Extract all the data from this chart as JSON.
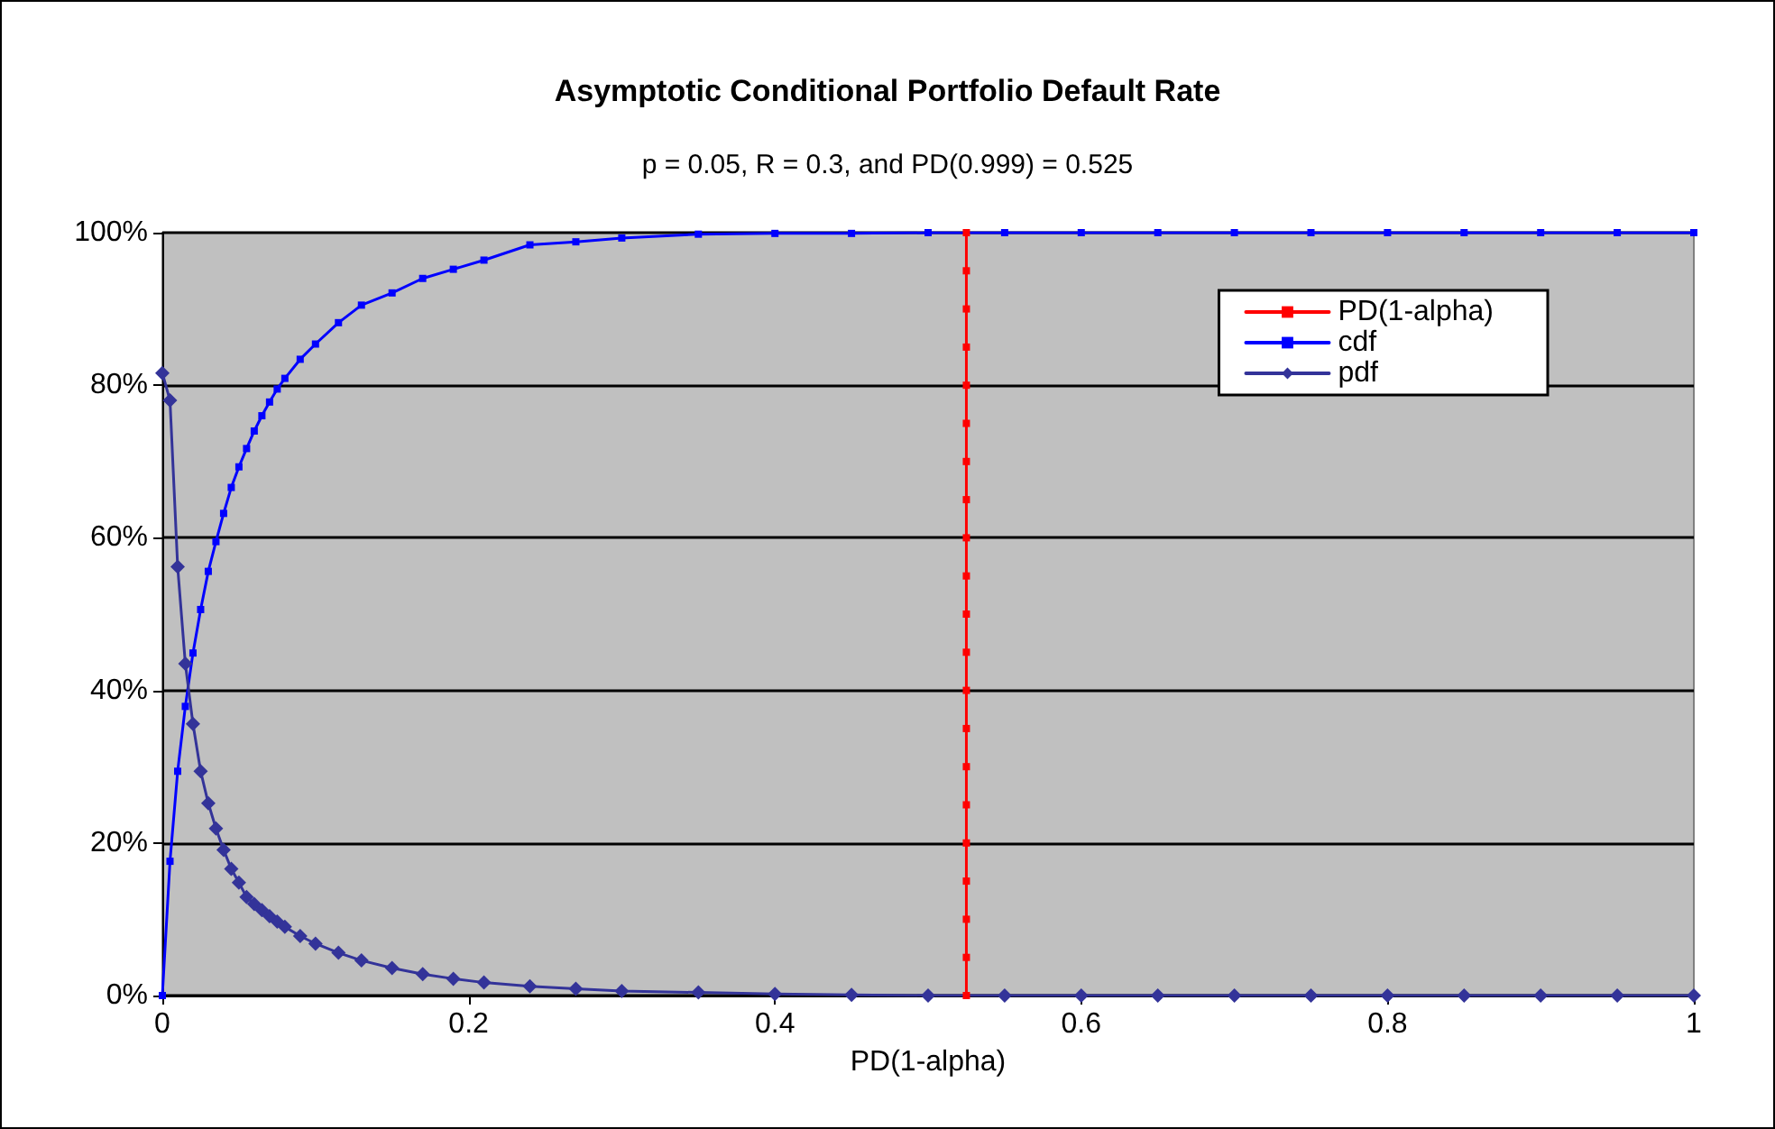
{
  "chart_data": {
    "type": "line",
    "title": "Asymptotic Conditional Portfolio Default Rate",
    "subtitle": "p = 0.05, R = 0.3, and PD(0.999) = 0.525",
    "xlabel": "PD(1-alpha)",
    "xlim": [
      0,
      1
    ],
    "xticks": [
      0,
      0.2,
      0.4,
      0.6,
      0.8,
      1
    ],
    "ylim": [
      0,
      100
    ],
    "yticks": [
      {
        "value": 0,
        "label": "0%"
      },
      {
        "value": 20,
        "label": "20%"
      },
      {
        "value": 40,
        "label": "40%"
      },
      {
        "value": 60,
        "label": "60%"
      },
      {
        "value": 80,
        "label": "80%"
      },
      {
        "value": 100,
        "label": "100%"
      }
    ],
    "grid": "y",
    "legend": "top right",
    "line_style": "solid",
    "series": [
      {
        "name": "PD(1-alpha)",
        "color": "#ff0000",
        "marker": "square",
        "x": [
          0.525,
          0.525,
          0.525,
          0.525,
          0.525,
          0.525,
          0.525,
          0.525,
          0.525,
          0.525,
          0.525,
          0.525,
          0.525,
          0.525,
          0.525,
          0.525,
          0.525,
          0.525,
          0.525,
          0.525,
          0.525
        ],
        "values": [
          0,
          5,
          10,
          15,
          20,
          25,
          30,
          35,
          40,
          45,
          50,
          55,
          60,
          65,
          70,
          75,
          80,
          85,
          90,
          95,
          100
        ]
      },
      {
        "name": "cdf",
        "color": "#0000ff",
        "marker": "square",
        "x": [
          0,
          0.005,
          0.01,
          0.015,
          0.02,
          0.025,
          0.03,
          0.035,
          0.04,
          0.045,
          0.05,
          0.055,
          0.06,
          0.065,
          0.07,
          0.075,
          0.08,
          0.09,
          0.1,
          0.115,
          0.13,
          0.15,
          0.17,
          0.19,
          0.21,
          0.24,
          0.27,
          0.3,
          0.35,
          0.4,
          0.45,
          0.5,
          0.55,
          0.6,
          0.65,
          0.7,
          0.75,
          0.8,
          0.85,
          0.9,
          0.95,
          1
        ],
        "values": [
          0,
          17.6,
          29.4,
          37.9,
          44.9,
          50.6,
          55.6,
          59.5,
          63.2,
          66.6,
          69.3,
          71.7,
          74,
          76,
          77.8,
          79.5,
          80.9,
          83.4,
          85.4,
          88.2,
          90.5,
          92.1,
          94,
          95.2,
          96.4,
          98.4,
          98.8,
          99.3,
          99.8,
          99.9,
          99.9,
          100,
          100,
          100,
          100,
          100,
          100,
          100,
          100,
          100,
          100,
          100
        ]
      },
      {
        "name": "pdf",
        "color": "#333399",
        "marker": "diamond",
        "x": [
          0,
          0.005,
          0.01,
          0.015,
          0.02,
          0.025,
          0.03,
          0.035,
          0.04,
          0.045,
          0.05,
          0.055,
          0.06,
          0.065,
          0.07,
          0.075,
          0.08,
          0.09,
          0.1,
          0.115,
          0.13,
          0.15,
          0.17,
          0.19,
          0.21,
          0.24,
          0.27,
          0.3,
          0.35,
          0.4,
          0.45,
          0.5,
          0.55,
          0.6,
          0.65,
          0.7,
          0.75,
          0.8,
          0.85,
          0.9,
          0.95,
          1
        ],
        "values": [
          81.6,
          78,
          56.2,
          43.5,
          35.6,
          29.4,
          25.2,
          21.9,
          19.1,
          16.6,
          14.8,
          12.9,
          12,
          11.2,
          10.4,
          9.7,
          9,
          7.8,
          6.8,
          5.6,
          4.6,
          3.6,
          2.8,
          2.2,
          1.7,
          1.2,
          0.9,
          0.6,
          0.4,
          0.2,
          0.1,
          0,
          0,
          0,
          0,
          0,
          0,
          0,
          0,
          0,
          0,
          0
        ]
      }
    ]
  }
}
